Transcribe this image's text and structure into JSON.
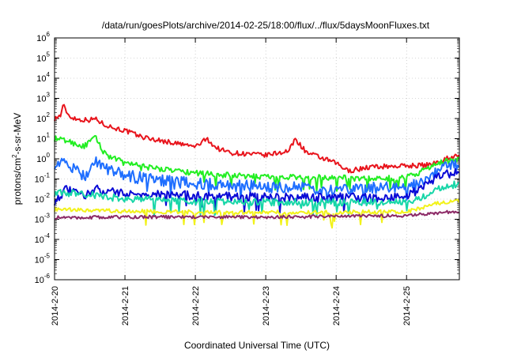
{
  "chart_data": {
    "type": "line",
    "title": "/data/run/goesPlots/archive/2014-02-25/18:00/flux/../flux/5daysMoonFluxes.txt",
    "xlabel": "Coordinated Universal Time (UTC)",
    "ylabel": {
      "prefix": "protons/cm",
      "sup": "2",
      "suffix": "-s-sr-MeV"
    },
    "yscale": "log",
    "ylim": [
      1e-06,
      1000000.0
    ],
    "xlim": [
      "2014-02-20",
      "2014-02-25T18:00"
    ],
    "grid": true,
    "y_ticks": [
      {
        "value": 1e-06,
        "base": "10",
        "exp": "-6"
      },
      {
        "value": 1e-05,
        "base": "10",
        "exp": "-5"
      },
      {
        "value": 0.0001,
        "base": "10",
        "exp": "-4"
      },
      {
        "value": 0.001,
        "base": "10",
        "exp": "-3"
      },
      {
        "value": 0.01,
        "base": "10",
        "exp": "-2"
      },
      {
        "value": 0.1,
        "base": "10",
        "exp": "-1"
      },
      {
        "value": 1,
        "base": "10",
        "exp": "0"
      },
      {
        "value": 10.0,
        "base": "10",
        "exp": "1"
      },
      {
        "value": 100.0,
        "base": "10",
        "exp": "2"
      },
      {
        "value": 1000.0,
        "base": "10",
        "exp": "3"
      },
      {
        "value": 10000.0,
        "base": "10",
        "exp": "4"
      },
      {
        "value": 100000.0,
        "base": "10",
        "exp": "5"
      },
      {
        "value": 1000000.0,
        "base": "10",
        "exp": "6"
      }
    ],
    "x_ticks": [
      "2014-2-20",
      "2014-2-21",
      "2014-2-22",
      "2014-2-23",
      "2014-2-24",
      "2014-2-25"
    ],
    "series": [
      {
        "color": "#e8141c",
        "noise": 0.12,
        "x": [
          "2014-02-20T00:00",
          "2014-02-20T02:00",
          "2014-02-20T03:00",
          "2014-02-20T05:00",
          "2014-02-20T08:00",
          "2014-02-20T12:00",
          "2014-02-20T14:00",
          "2014-02-20T16:00",
          "2014-02-20T20:00",
          "2014-02-21T00:00",
          "2014-02-21T06:00",
          "2014-02-21T12:00",
          "2014-02-22T00:00",
          "2014-02-22T04:00",
          "2014-02-22T07:00",
          "2014-02-22T12:00",
          "2014-02-23T00:00",
          "2014-02-23T08:00",
          "2014-02-23T10:00",
          "2014-02-23T14:00",
          "2014-02-24T00:00",
          "2014-02-24T04:00",
          "2014-02-24T12:00",
          "2014-02-25T00:00",
          "2014-02-25T08:00",
          "2014-02-25T14:00",
          "2014-02-25T18:00"
        ],
        "y": [
          100,
          140,
          450,
          130,
          90,
          85,
          100,
          60,
          35,
          25,
          12,
          8,
          4,
          10,
          3.5,
          2,
          1.5,
          2.5,
          10,
          2,
          0.6,
          0.25,
          0.4,
          0.45,
          0.5,
          1.1,
          1.5
        ]
      },
      {
        "color": "#22ee22",
        "noise": 0.14,
        "x": [
          "2014-02-20T00:00",
          "2014-02-20T04:00",
          "2014-02-20T10:00",
          "2014-02-20T14:00",
          "2014-02-20T16:00",
          "2014-02-20T18:00",
          "2014-02-21T00:00",
          "2014-02-21T12:00",
          "2014-02-22T00:00",
          "2014-02-22T12:00",
          "2014-02-23T00:00",
          "2014-02-24T00:00",
          "2014-02-24T12:00",
          "2014-02-25T00:00",
          "2014-02-25T04:00",
          "2014-02-25T10:00",
          "2014-02-25T18:00"
        ],
        "y": [
          10,
          8,
          4,
          12,
          3,
          1.5,
          0.6,
          0.3,
          0.2,
          0.15,
          0.13,
          0.12,
          0.1,
          0.12,
          0.2,
          0.6,
          1.0
        ]
      },
      {
        "color": "#1e6eff",
        "noise": 0.3,
        "x": [
          "2014-02-20T00:00",
          "2014-02-20T04:00",
          "2014-02-20T08:00",
          "2014-02-20T12:00",
          "2014-02-20T13:00",
          "2014-02-20T18:00",
          "2014-02-21T00:00",
          "2014-02-21T12:00",
          "2014-02-22T00:00",
          "2014-02-23T00:00",
          "2014-02-24T00:00",
          "2014-02-25T00:00",
          "2014-02-25T06:00",
          "2014-02-25T12:00",
          "2014-02-25T18:00"
        ],
        "y": [
          0.6,
          0.6,
          0.2,
          0.15,
          1.0,
          0.3,
          0.15,
          0.08,
          0.06,
          0.04,
          0.03,
          0.04,
          0.1,
          0.3,
          0.6
        ]
      },
      {
        "color": "#0a0ad6",
        "noise": 0.22,
        "x": [
          "2014-02-20T00:00",
          "2014-02-20T04:00",
          "2014-02-20T10:00",
          "2014-02-20T14:00",
          "2014-02-20T20:00",
          "2014-02-21T00:00",
          "2014-02-22T00:00",
          "2014-02-23T00:00",
          "2014-02-24T00:00",
          "2014-02-25T00:00",
          "2014-02-25T06:00",
          "2014-02-25T12:00",
          "2014-02-25T18:00"
        ],
        "y": [
          0.008,
          0.03,
          0.015,
          0.03,
          0.025,
          0.02,
          0.015,
          0.013,
          0.012,
          0.012,
          0.05,
          0.15,
          0.25
        ]
      },
      {
        "color": "#18d6a8",
        "noise": 0.18,
        "x": [
          "2014-02-20T00:00",
          "2014-02-20T08:00",
          "2014-02-20T14:00",
          "2014-02-20T20:00",
          "2014-02-21T00:00",
          "2014-02-22T00:00",
          "2014-02-23T00:00",
          "2014-02-24T00:00",
          "2014-02-25T00:00",
          "2014-02-25T06:00",
          "2014-02-25T12:00",
          "2014-02-25T18:00"
        ],
        "y": [
          0.02,
          0.02,
          0.015,
          0.012,
          0.01,
          0.008,
          0.007,
          0.007,
          0.007,
          0.015,
          0.04,
          0.06
        ]
      },
      {
        "color": "#f2f21a",
        "noise": 0.1,
        "x": [
          "2014-02-20T00:00",
          "2014-02-21T00:00",
          "2014-02-22T00:00",
          "2014-02-23T00:00",
          "2014-02-24T00:00",
          "2014-02-25T00:00",
          "2014-02-25T06:00",
          "2014-02-25T12:00",
          "2014-02-25T18:00"
        ],
        "y": [
          0.003,
          0.0025,
          0.0023,
          0.0022,
          0.0022,
          0.0024,
          0.004,
          0.007,
          0.008
        ]
      },
      {
        "color": "#8c2a66",
        "noise": 0.08,
        "x": [
          "2014-02-20T00:00",
          "2014-02-21T00:00",
          "2014-02-22T00:00",
          "2014-02-23T00:00",
          "2014-02-24T00:00",
          "2014-02-25T00:00",
          "2014-02-25T12:00",
          "2014-02-25T18:00"
        ],
        "y": [
          0.0012,
          0.0013,
          0.0013,
          0.0013,
          0.0014,
          0.0015,
          0.0022,
          0.0025
        ]
      }
    ]
  }
}
